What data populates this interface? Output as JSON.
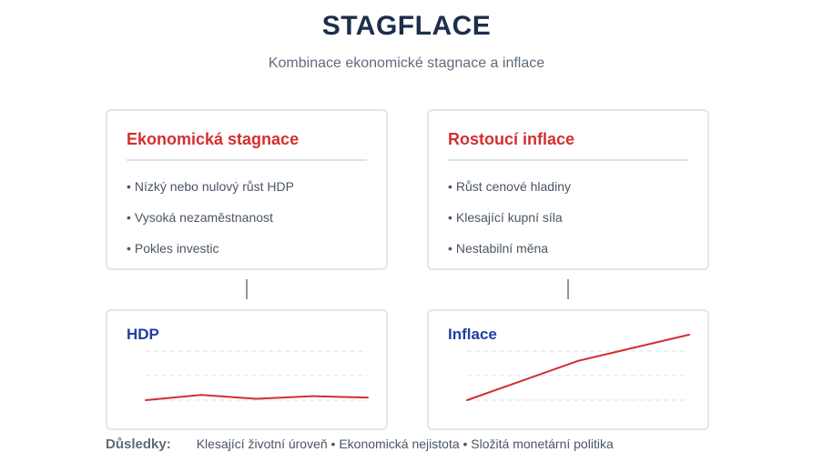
{
  "header": {
    "title": "STAGFLACE",
    "subtitle": "Kombinace ekonomické stagnace a inflace"
  },
  "cards": [
    {
      "title": "Ekonomická stagnace",
      "items": [
        "Nízký nebo nulový růst HDP",
        "Vysoká nezaměstnanost",
        "Pokles investic"
      ]
    },
    {
      "title": "Rostoucí inflace",
      "items": [
        "Růst cenové hladiny",
        "Klesající kupní síla",
        "Nestabilní měna"
      ]
    }
  ],
  "charts": [
    {
      "title": "HDP",
      "values": [
        0.2,
        0.28,
        0.22,
        0.26,
        0.24
      ]
    },
    {
      "title": "Inflace",
      "values": [
        0.2,
        0.5,
        0.8,
        1.0,
        1.2
      ]
    }
  ],
  "footer": {
    "label": "Důsledky:",
    "text": "Klesající životní úroveň • Ekonomická nejistota • Složitá monetární politika"
  },
  "colors": {
    "line": "#d32f2f",
    "card_title": "#d32f2f",
    "chart_title": "#1f3fa0",
    "heading": "#1c2e4a"
  }
}
